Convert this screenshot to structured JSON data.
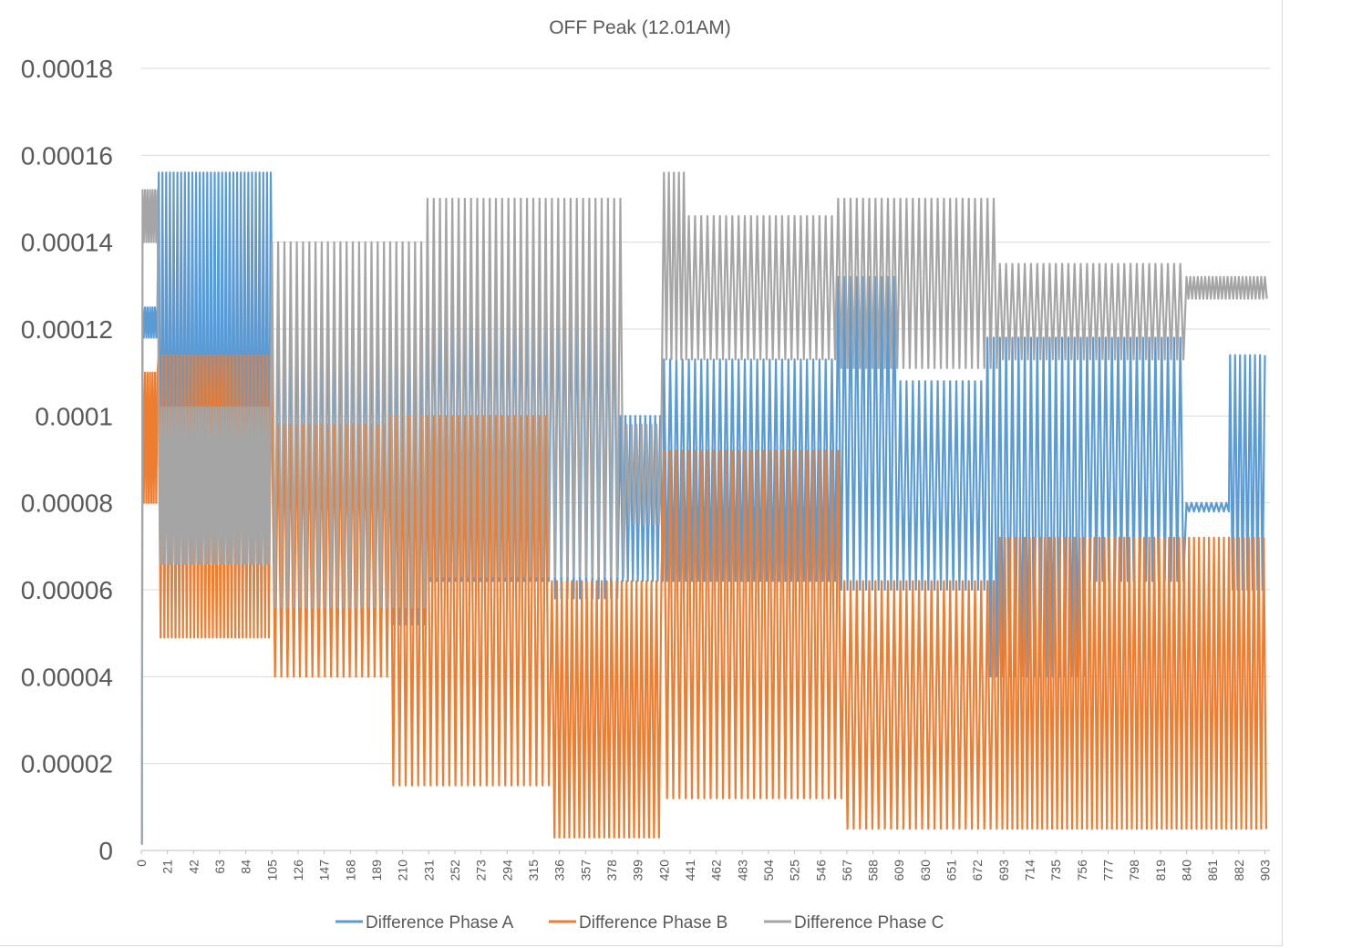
{
  "chart_data": {
    "type": "line",
    "title": "OFF Peak (12.01AM)",
    "xlabel": "",
    "ylabel": "",
    "ylim": [
      0,
      0.00018
    ],
    "yticks": [
      "0",
      "0.00002",
      "0.00004",
      "0.00006",
      "0.00008",
      "0.0001",
      "0.00012",
      "0.00014",
      "0.00016",
      "0.00018"
    ],
    "xlim": [
      0,
      907
    ],
    "xticks": [
      "0",
      "21",
      "42",
      "63",
      "84",
      "105",
      "126",
      "147",
      "168",
      "189",
      "210",
      "231",
      "252",
      "273",
      "294",
      "315",
      "336",
      "357",
      "378",
      "399",
      "420",
      "441",
      "462",
      "483",
      "504",
      "525",
      "546",
      "567",
      "588",
      "609",
      "630",
      "651",
      "672",
      "693",
      "714",
      "735",
      "756",
      "777",
      "798",
      "819",
      "840",
      "861",
      "882",
      "903"
    ],
    "grid": "horizontal",
    "legend_position": "bottom",
    "series": [
      {
        "name": "Difference Phase A",
        "color": "#5b9bd5",
        "segments": [
          {
            "from": 0,
            "to": 1,
            "low": 1.5e-06,
            "high": 1.5e-06,
            "period": 1
          },
          {
            "from": 1,
            "to": 14,
            "low": 0.000118,
            "high": 0.000125,
            "period": 2
          },
          {
            "from": 14,
            "to": 105,
            "low": 6.6e-05,
            "high": 0.000156,
            "period": 3
          },
          {
            "from": 105,
            "to": 230,
            "low": 5.2e-05,
            "high": 0.000125,
            "period": 5
          },
          {
            "from": 230,
            "to": 330,
            "low": 6.2e-05,
            "high": 0.00013,
            "period": 5
          },
          {
            "from": 330,
            "to": 385,
            "low": 5.8e-05,
            "high": 0.00013,
            "period": 5
          },
          {
            "from": 385,
            "to": 420,
            "low": 6.2e-05,
            "high": 0.0001,
            "period": 4
          },
          {
            "from": 420,
            "to": 560,
            "low": 6.2e-05,
            "high": 0.000113,
            "period": 5
          },
          {
            "from": 560,
            "to": 610,
            "low": 6e-05,
            "high": 0.000132,
            "period": 5
          },
          {
            "from": 610,
            "to": 680,
            "low": 6e-05,
            "high": 0.000108,
            "period": 5
          },
          {
            "from": 680,
            "to": 760,
            "low": 4e-05,
            "high": 0.000118,
            "period": 5
          },
          {
            "from": 760,
            "to": 840,
            "low": 6.2e-05,
            "high": 0.000118,
            "period": 5
          },
          {
            "from": 840,
            "to": 875,
            "low": 7.8e-05,
            "high": 8e-05,
            "period": 4
          },
          {
            "from": 875,
            "to": 905,
            "low": 6e-05,
            "high": 0.000114,
            "period": 4
          }
        ]
      },
      {
        "name": "Difference Phase B",
        "color": "#ed7d31",
        "segments": [
          {
            "from": 0,
            "to": 1,
            "low": 0.00011,
            "high": 0.00011,
            "period": 1
          },
          {
            "from": 1,
            "to": 14,
            "low": 8e-05,
            "high": 0.00011,
            "period": 2
          },
          {
            "from": 14,
            "to": 105,
            "low": 4.9e-05,
            "high": 0.000114,
            "period": 3
          },
          {
            "from": 105,
            "to": 200,
            "low": 4e-05,
            "high": 9.8e-05,
            "period": 5
          },
          {
            "from": 200,
            "to": 330,
            "low": 1.5e-05,
            "high": 0.0001,
            "period": 5
          },
          {
            "from": 330,
            "to": 420,
            "low": 3e-06,
            "high": 6.2e-05,
            "period": 4
          },
          {
            "from": 420,
            "to": 565,
            "low": 1.2e-05,
            "high": 9.2e-05,
            "period": 5
          },
          {
            "from": 565,
            "to": 690,
            "low": 5e-06,
            "high": 6.2e-05,
            "period": 5
          },
          {
            "from": 690,
            "to": 905,
            "low": 5e-06,
            "high": 7.2e-05,
            "period": 4
          }
        ]
      },
      {
        "name": "Difference Phase C",
        "color": "#a5a5a5",
        "segments": [
          {
            "from": 0,
            "to": 1,
            "low": 1.5e-06,
            "high": 1.5e-06,
            "period": 1
          },
          {
            "from": 1,
            "to": 14,
            "low": 0.00014,
            "high": 0.000152,
            "period": 2
          },
          {
            "from": 14,
            "to": 105,
            "low": 6.6e-05,
            "high": 0.000102,
            "period": 2
          },
          {
            "from": 105,
            "to": 230,
            "low": 5.6e-05,
            "high": 0.00014,
            "period": 5
          },
          {
            "from": 230,
            "to": 390,
            "low": 6.3e-05,
            "high": 0.00015,
            "period": 5
          },
          {
            "from": 390,
            "to": 420,
            "low": 7.5e-05,
            "high": 9.8e-05,
            "period": 4
          },
          {
            "from": 420,
            "to": 440,
            "low": 0.000113,
            "high": 0.000156,
            "period": 4
          },
          {
            "from": 440,
            "to": 560,
            "low": 0.000113,
            "high": 0.000146,
            "period": 5
          },
          {
            "from": 560,
            "to": 690,
            "low": 0.000111,
            "high": 0.00015,
            "period": 5
          },
          {
            "from": 690,
            "to": 840,
            "low": 0.000113,
            "high": 0.000135,
            "period": 5
          },
          {
            "from": 840,
            "to": 905,
            "low": 0.000127,
            "high": 0.000132,
            "period": 3
          }
        ]
      }
    ]
  }
}
